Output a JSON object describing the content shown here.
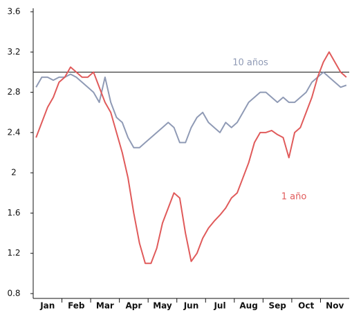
{
  "chart_data": {
    "type": "line",
    "categories": [
      null,
      null,
      "Jan",
      null,
      null,
      null,
      null,
      "Feb",
      null,
      null,
      null,
      null,
      "Mar",
      null,
      null,
      null,
      null,
      "Apr",
      null,
      null,
      null,
      null,
      "May",
      null,
      null,
      null,
      null,
      "Jun",
      null,
      null,
      null,
      null,
      "Jul",
      null,
      null,
      null,
      null,
      "Aug",
      null,
      null,
      null,
      null,
      "Sep",
      null,
      null,
      null,
      null,
      "Oct",
      null,
      null,
      null,
      null,
      "Nov",
      null,
      null
    ],
    "series": [
      {
        "name": "10 años",
        "color": "#8f9ab5",
        "values": [
          2.85,
          2.95,
          2.95,
          2.92,
          2.95,
          2.95,
          2.98,
          2.95,
          2.9,
          2.85,
          2.8,
          2.7,
          2.95,
          2.7,
          2.55,
          2.5,
          2.35,
          2.25,
          2.25,
          2.3,
          2.35,
          2.4,
          2.45,
          2.5,
          2.45,
          2.3,
          2.3,
          2.45,
          2.55,
          2.6,
          2.5,
          2.45,
          2.4,
          2.5,
          2.45,
          2.5,
          2.6,
          2.7,
          2.75,
          2.8,
          2.8,
          2.75,
          2.7,
          2.75,
          2.7,
          2.7,
          2.75,
          2.8,
          2.9,
          2.95,
          3.0,
          2.95,
          2.9,
          2.85,
          2.87
        ]
      },
      {
        "name": "1 año",
        "color": "#e05a5a",
        "values": [
          2.35,
          2.5,
          2.65,
          2.75,
          2.9,
          2.95,
          3.05,
          3.0,
          2.95,
          2.95,
          3.0,
          2.85,
          2.7,
          2.6,
          2.4,
          2.2,
          1.95,
          1.6,
          1.3,
          1.1,
          1.1,
          1.25,
          1.5,
          1.65,
          1.8,
          1.75,
          1.4,
          1.12,
          1.2,
          1.35,
          1.45,
          1.52,
          1.58,
          1.65,
          1.75,
          1.8,
          1.95,
          2.1,
          2.3,
          2.4,
          2.4,
          2.42,
          2.38,
          2.35,
          2.15,
          2.4,
          2.45,
          2.6,
          2.75,
          2.95,
          3.1,
          3.2,
          3.1,
          3.0,
          2.95
        ]
      }
    ],
    "reference_line": 3.0,
    "ylim": [
      0.8,
      3.6
    ],
    "yticks": [
      0.8,
      1.2,
      1.6,
      2.0,
      2.4,
      2.8,
      3.2,
      3.6
    ]
  }
}
